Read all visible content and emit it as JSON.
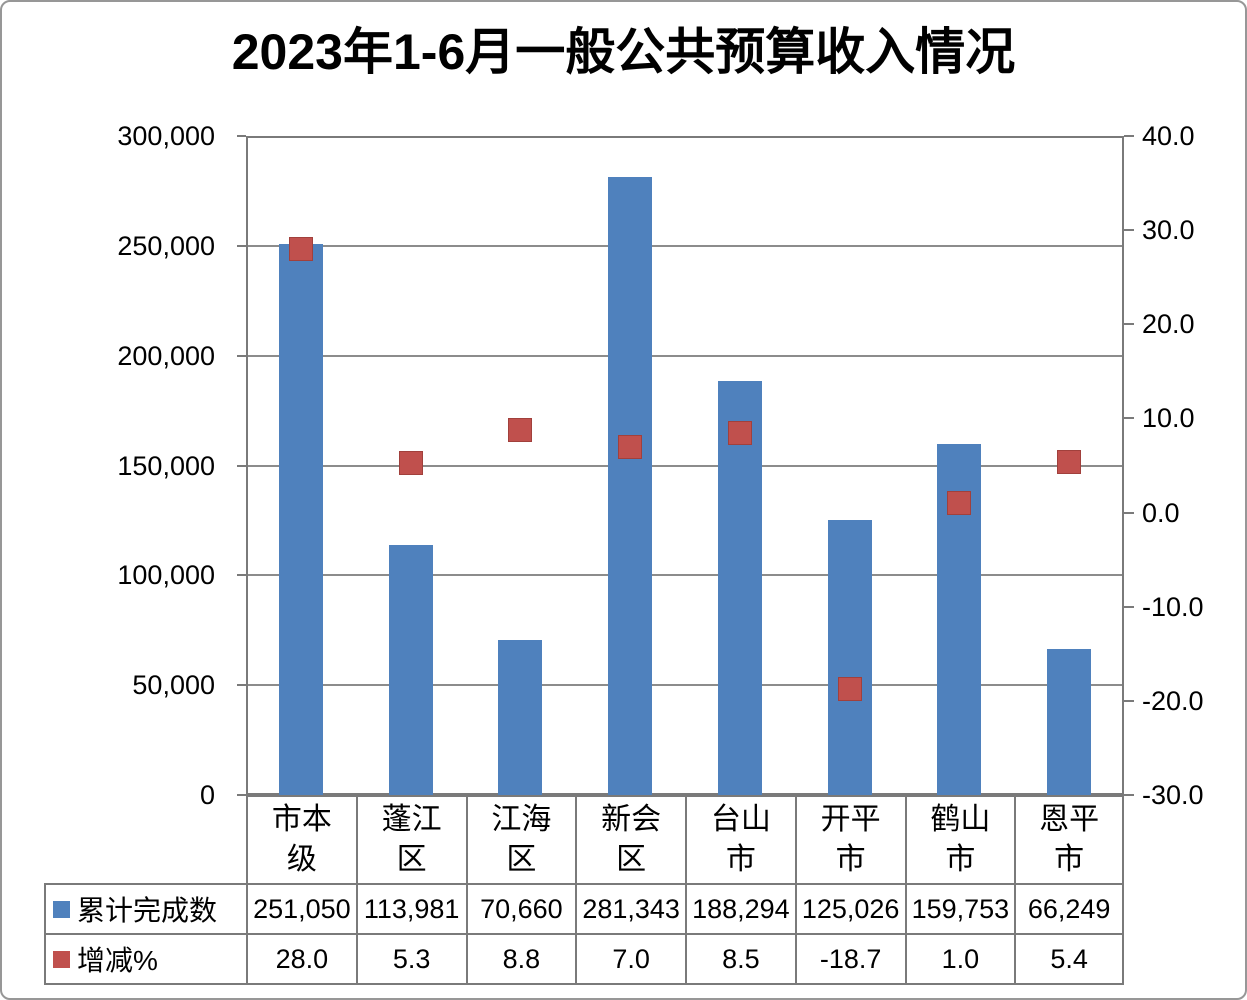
{
  "title": "2023年1-6月一般公共预算收入情况",
  "chart_data": {
    "type": "bar",
    "subtype": "column-bars-with-square-scatter-combo",
    "title": "2023年1-6月一般公共预算收入情况",
    "categories": [
      "市本级",
      "蓬江区",
      "江海区",
      "新会区",
      "台山市",
      "开平市",
      "鹤山市",
      "恩平市"
    ],
    "series": [
      {
        "name": "累计完成数",
        "type": "bar",
        "axis": "left",
        "color": "#4F81BD",
        "values": [
          251050,
          113981,
          70660,
          281343,
          188294,
          125026,
          159753,
          66249
        ]
      },
      {
        "name": "增减%",
        "type": "scatter",
        "marker": "square",
        "axis": "right",
        "color": "#C0504D",
        "values": [
          28.0,
          5.3,
          8.8,
          7.0,
          8.5,
          -18.7,
          1.0,
          5.4
        ]
      }
    ],
    "left_axis": {
      "min": 0,
      "max": 300000,
      "step": 50000,
      "tick_labels": [
        "300,000",
        "250,000",
        "200,000",
        "150,000",
        "100,000",
        "50,000",
        "0"
      ]
    },
    "right_axis": {
      "min": -30,
      "max": 40,
      "step": 10,
      "tick_labels": [
        "40.0",
        "30.0",
        "20.0",
        "10.0",
        "0.0",
        "-10.0",
        "-20.0",
        "-30.0"
      ]
    },
    "grid": true,
    "legend_position": "attached-data-table"
  },
  "data_table": {
    "rows": [
      {
        "label": "累计完成数",
        "key_color": "#4F81BD",
        "values": [
          "251,050",
          "113,981",
          "70,660",
          "281,343",
          "188,294",
          "125,026",
          "159,753",
          "66,249"
        ]
      },
      {
        "label": "增减%",
        "key_color": "#C0504D",
        "values": [
          "28.0",
          "5.3",
          "8.8",
          "7.0",
          "8.5",
          "-18.7",
          "1.0",
          "5.4"
        ]
      }
    ]
  }
}
